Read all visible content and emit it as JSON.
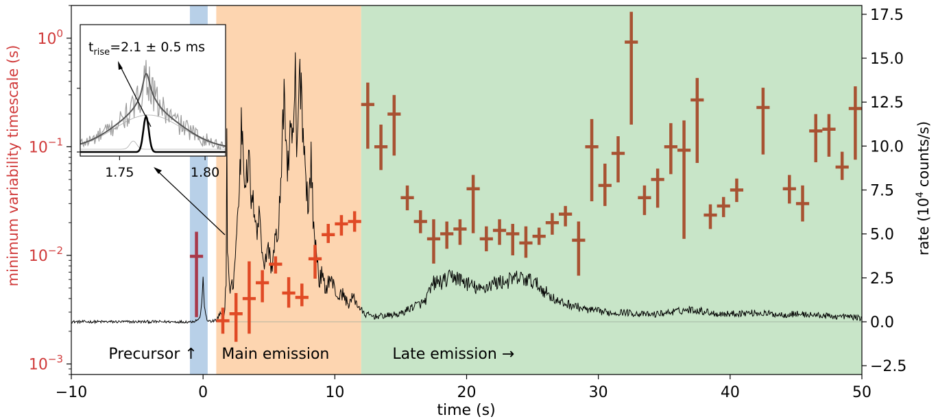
{
  "chart_data": {
    "type": "scatter",
    "xlabel": "time (s)",
    "ylabel_left": "minimum variability timescale (s)",
    "ylabel_right_prefix": "rate (10",
    "ylabel_right_sup": "4",
    "ylabel_right_suffix": " counts/s)",
    "x_ticks": [
      -10,
      0,
      10,
      20,
      30,
      40,
      50
    ],
    "x_tick_labels": [
      "−10",
      "0",
      "10",
      "20",
      "30",
      "40",
      "50"
    ],
    "xlim": [
      -10,
      50
    ],
    "left_ylim": [
      0.0008,
      2.0
    ],
    "left_scale": "log",
    "left_ticks": [
      {
        "value": 0.001,
        "base": "10",
        "exp": "−3"
      },
      {
        "value": 0.01,
        "base": "10",
        "exp": "−2"
      },
      {
        "value": 0.1,
        "base": "10",
        "exp": "−1"
      },
      {
        "value": 1,
        "base": "10",
        "exp": "0"
      }
    ],
    "right_ylim": [
      -3.0,
      18.0
    ],
    "right_ticks": [
      -2.5,
      0.0,
      2.5,
      5.0,
      7.5,
      10.0,
      12.5,
      15.0,
      17.5
    ],
    "right_tick_labels": [
      "−2.5",
      "0.0",
      "2.5",
      "5.0",
      "7.5",
      "10.0",
      "12.5",
      "15.0",
      "17.5"
    ],
    "regions": [
      {
        "label": "Precursor ↑",
        "x0": -1.0,
        "x1": 0.35,
        "color": "#b8d0e8"
      },
      {
        "label": "Main emission",
        "x0": 1.0,
        "x1": 12.0,
        "color": "#fdd5b0"
      },
      {
        "label": "Late emission →",
        "x0": 12.0,
        "x1": 50.0,
        "color": "#c8e5c8"
      }
    ],
    "mvt_points": [
      {
        "x": -0.5,
        "y": 0.0098,
        "lo": 0.0027,
        "hi": 0.0165,
        "xerr": 0.5,
        "color": "#a8394a"
      },
      {
        "x": 1.5,
        "y": 0.0025,
        "lo": 0.0019,
        "hi": 0.0033,
        "xerr": 0.5,
        "color": "#e04a25"
      },
      {
        "x": 2.5,
        "y": 0.0029,
        "lo": 0.0016,
        "hi": 0.0045,
        "xerr": 0.5,
        "color": "#e04a25"
      },
      {
        "x": 3.5,
        "y": 0.004,
        "lo": 0.0019,
        "hi": 0.0088,
        "xerr": 0.5,
        "color": "#e04a25"
      },
      {
        "x": 4.5,
        "y": 0.0056,
        "lo": 0.0037,
        "hi": 0.0073,
        "xerr": 0.5,
        "color": "#e04a25"
      },
      {
        "x": 5.5,
        "y": 0.0083,
        "lo": 0.0068,
        "hi": 0.0098,
        "xerr": 0.5,
        "color": "#e04a25"
      },
      {
        "x": 6.5,
        "y": 0.0045,
        "lo": 0.0033,
        "hi": 0.0063,
        "xerr": 0.5,
        "color": "#e04a25"
      },
      {
        "x": 7.5,
        "y": 0.0041,
        "lo": 0.0034,
        "hi": 0.0055,
        "xerr": 0.5,
        "color": "#e04a25"
      },
      {
        "x": 8.5,
        "y": 0.0093,
        "lo": 0.0061,
        "hi": 0.0125,
        "xerr": 0.5,
        "color": "#e04a25"
      },
      {
        "x": 9.5,
        "y": 0.0155,
        "lo": 0.013,
        "hi": 0.0195,
        "xerr": 0.5,
        "color": "#e04a25"
      },
      {
        "x": 10.5,
        "y": 0.0195,
        "lo": 0.0152,
        "hi": 0.0235,
        "xerr": 0.5,
        "color": "#e04a25"
      },
      {
        "x": 11.5,
        "y": 0.0205,
        "lo": 0.0165,
        "hi": 0.0255,
        "xerr": 0.5,
        "color": "#e04a25"
      },
      {
        "x": 12.5,
        "y": 0.245,
        "lo": 0.096,
        "hi": 0.39,
        "xerr": 0.5,
        "color": "#a85232"
      },
      {
        "x": 13.5,
        "y": 0.1,
        "lo": 0.061,
        "hi": 0.16,
        "xerr": 0.5,
        "color": "#a85232"
      },
      {
        "x": 14.5,
        "y": 0.2,
        "lo": 0.083,
        "hi": 0.3,
        "xerr": 0.5,
        "color": "#a85232"
      },
      {
        "x": 15.5,
        "y": 0.034,
        "lo": 0.026,
        "hi": 0.044,
        "xerr": 0.5,
        "color": "#a85232"
      },
      {
        "x": 16.5,
        "y": 0.0205,
        "lo": 0.016,
        "hi": 0.026,
        "xerr": 0.5,
        "color": "#a85232"
      },
      {
        "x": 17.5,
        "y": 0.0142,
        "lo": 0.0084,
        "hi": 0.0215,
        "xerr": 0.5,
        "color": "#a85232"
      },
      {
        "x": 18.5,
        "y": 0.0158,
        "lo": 0.0115,
        "hi": 0.0205,
        "xerr": 0.5,
        "color": "#a85232"
      },
      {
        "x": 19.5,
        "y": 0.0175,
        "lo": 0.0125,
        "hi": 0.0215,
        "xerr": 0.5,
        "color": "#a85232"
      },
      {
        "x": 20.5,
        "y": 0.041,
        "lo": 0.016,
        "hi": 0.055,
        "xerr": 0.5,
        "color": "#a85232"
      },
      {
        "x": 21.5,
        "y": 0.0142,
        "lo": 0.0109,
        "hi": 0.0185,
        "xerr": 0.5,
        "color": "#a85232"
      },
      {
        "x": 22.5,
        "y": 0.017,
        "lo": 0.0125,
        "hi": 0.0215,
        "xerr": 0.5,
        "color": "#a85232"
      },
      {
        "x": 23.5,
        "y": 0.0158,
        "lo": 0.01,
        "hi": 0.0195,
        "xerr": 0.5,
        "color": "#a85232"
      },
      {
        "x": 24.5,
        "y": 0.013,
        "lo": 0.0095,
        "hi": 0.0185,
        "xerr": 0.5,
        "color": "#a85232"
      },
      {
        "x": 25.5,
        "y": 0.015,
        "lo": 0.0125,
        "hi": 0.018,
        "xerr": 0.5,
        "color": "#a85232"
      },
      {
        "x": 26.5,
        "y": 0.02,
        "lo": 0.0155,
        "hi": 0.0245,
        "xerr": 0.5,
        "color": "#a85232"
      },
      {
        "x": 27.5,
        "y": 0.024,
        "lo": 0.0185,
        "hi": 0.0285,
        "xerr": 0.5,
        "color": "#a85232"
      },
      {
        "x": 28.5,
        "y": 0.0138,
        "lo": 0.0065,
        "hi": 0.0205,
        "xerr": 0.5,
        "color": "#a85232"
      },
      {
        "x": 29.5,
        "y": 0.1,
        "lo": 0.0315,
        "hi": 0.18,
        "xerr": 0.5,
        "color": "#a85232"
      },
      {
        "x": 30.5,
        "y": 0.044,
        "lo": 0.0285,
        "hi": 0.07,
        "xerr": 0.5,
        "color": "#a85232"
      },
      {
        "x": 31.5,
        "y": 0.087,
        "lo": 0.047,
        "hi": 0.125,
        "xerr": 0.5,
        "color": "#a85232"
      },
      {
        "x": 32.5,
        "y": 0.92,
        "lo": 0.16,
        "hi": 1.75,
        "xerr": 0.5,
        "color": "#a85232"
      },
      {
        "x": 33.5,
        "y": 0.034,
        "lo": 0.0235,
        "hi": 0.044,
        "xerr": 0.5,
        "color": "#a85232"
      },
      {
        "x": 34.5,
        "y": 0.05,
        "lo": 0.0275,
        "hi": 0.063,
        "xerr": 0.5,
        "color": "#a85232"
      },
      {
        "x": 35.5,
        "y": 0.1,
        "lo": 0.056,
        "hi": 0.165,
        "xerr": 0.5,
        "color": "#a85232"
      },
      {
        "x": 36.5,
        "y": 0.093,
        "lo": 0.0142,
        "hi": 0.175,
        "xerr": 0.5,
        "color": "#a85232"
      },
      {
        "x": 37.5,
        "y": 0.27,
        "lo": 0.071,
        "hi": 0.43,
        "xerr": 0.5,
        "color": "#a85232"
      },
      {
        "x": 38.5,
        "y": 0.0235,
        "lo": 0.0175,
        "hi": 0.0295,
        "xerr": 0.5,
        "color": "#a85232"
      },
      {
        "x": 39.5,
        "y": 0.0285,
        "lo": 0.0225,
        "hi": 0.0345,
        "xerr": 0.5,
        "color": "#a85232"
      },
      {
        "x": 40.5,
        "y": 0.04,
        "lo": 0.031,
        "hi": 0.051,
        "xerr": 0.5,
        "color": "#a85232"
      },
      {
        "x": 42.5,
        "y": 0.23,
        "lo": 0.085,
        "hi": 0.35,
        "xerr": 0.5,
        "color": "#a85232"
      },
      {
        "x": 44.5,
        "y": 0.041,
        "lo": 0.03,
        "hi": 0.055,
        "xerr": 0.5,
        "color": "#a85232"
      },
      {
        "x": 45.5,
        "y": 0.03,
        "lo": 0.0205,
        "hi": 0.044,
        "xerr": 0.5,
        "color": "#a85232"
      },
      {
        "x": 46.5,
        "y": 0.14,
        "lo": 0.072,
        "hi": 0.2,
        "xerr": 0.5,
        "color": "#a85232"
      },
      {
        "x": 47.5,
        "y": 0.145,
        "lo": 0.081,
        "hi": 0.2,
        "xerr": 0.5,
        "color": "#a85232"
      },
      {
        "x": 48.5,
        "y": 0.065,
        "lo": 0.0495,
        "hi": 0.09,
        "xerr": 0.5,
        "color": "#a85232"
      },
      {
        "x": 49.5,
        "y": 0.225,
        "lo": 0.076,
        "hi": 0.36,
        "xerr": 0.5,
        "color": "#a85232"
      }
    ],
    "lightcurve_keypoints": [
      [
        -10,
        0.0
      ],
      [
        -1.0,
        0.0
      ],
      [
        -0.6,
        0.05
      ],
      [
        -0.25,
        0.2
      ],
      [
        -0.1,
        1.0
      ],
      [
        0.0,
        2.6
      ],
      [
        0.1,
        0.8
      ],
      [
        0.3,
        0.1
      ],
      [
        0.6,
        0.0
      ],
      [
        1.0,
        0.1
      ],
      [
        1.3,
        0.4
      ],
      [
        1.6,
        0.25
      ],
      [
        1.75,
        2.5
      ],
      [
        1.8,
        10.0
      ],
      [
        1.85,
        4.5
      ],
      [
        2.0,
        1.8
      ],
      [
        2.3,
        2.2
      ],
      [
        2.55,
        5.0
      ],
      [
        2.7,
        7.0
      ],
      [
        2.85,
        9.2
      ],
      [
        2.9,
        11.5
      ],
      [
        3.0,
        10.8
      ],
      [
        3.1,
        8.8
      ],
      [
        3.3,
        8.2
      ],
      [
        3.5,
        9.0
      ],
      [
        3.7,
        6.5
      ],
      [
        3.9,
        6.8
      ],
      [
        4.1,
        5.0
      ],
      [
        4.3,
        6.3
      ],
      [
        4.5,
        4.0
      ],
      [
        4.7,
        3.1
      ],
      [
        4.9,
        4.5
      ],
      [
        5.2,
        3.0
      ],
      [
        5.5,
        5.0
      ],
      [
        5.7,
        4.3
      ],
      [
        6.0,
        10.4
      ],
      [
        6.2,
        12.8
      ],
      [
        6.4,
        8.5
      ],
      [
        6.6,
        10.2
      ],
      [
        6.8,
        10.0
      ],
      [
        7.0,
        14.0
      ],
      [
        7.1,
        9.0
      ],
      [
        7.3,
        13.5
      ],
      [
        7.45,
        14.0
      ],
      [
        7.6,
        10.5
      ],
      [
        7.8,
        8.6
      ],
      [
        8.0,
        6.2
      ],
      [
        8.2,
        9.5
      ],
      [
        8.4,
        5.0
      ],
      [
        8.6,
        4.2
      ],
      [
        8.8,
        2.3
      ],
      [
        9.0,
        2.7
      ],
      [
        9.3,
        1.8
      ],
      [
        9.6,
        2.5
      ],
      [
        9.9,
        2.1
      ],
      [
        10.2,
        1.4
      ],
      [
        10.6,
        1.6
      ],
      [
        11.0,
        1.0
      ],
      [
        11.4,
        1.4
      ],
      [
        11.8,
        0.9
      ],
      [
        12.2,
        0.45
      ],
      [
        13,
        0.3
      ],
      [
        14,
        0.35
      ],
      [
        15,
        0.45
      ],
      [
        16,
        0.9
      ],
      [
        16.8,
        1.1
      ],
      [
        17.5,
        2.2
      ],
      [
        18.3,
        2.3
      ],
      [
        19,
        2.6
      ],
      [
        20,
        2.2
      ],
      [
        21,
        1.8
      ],
      [
        22,
        2.2
      ],
      [
        23,
        2.3
      ],
      [
        24,
        2.5
      ],
      [
        25,
        2.3
      ],
      [
        26,
        1.7
      ],
      [
        27,
        1.1
      ],
      [
        28,
        0.95
      ],
      [
        29,
        0.7
      ],
      [
        30,
        0.6
      ],
      [
        31,
        0.5
      ],
      [
        32,
        0.55
      ],
      [
        33,
        0.45
      ],
      [
        34,
        0.4
      ],
      [
        35,
        0.5
      ],
      [
        36,
        0.6
      ],
      [
        37,
        0.7
      ],
      [
        38,
        0.6
      ],
      [
        39,
        0.45
      ],
      [
        40,
        0.45
      ],
      [
        41,
        0.5
      ],
      [
        42,
        0.5
      ],
      [
        43,
        0.45
      ],
      [
        44,
        0.4
      ],
      [
        45,
        0.45
      ],
      [
        46,
        0.4
      ],
      [
        47,
        0.35
      ],
      [
        48,
        0.3
      ],
      [
        49,
        0.3
      ],
      [
        50,
        0.2
      ]
    ],
    "inset": {
      "label_main": "t",
      "label_sub": "rise",
      "label_value": "=2.1 ± 0.5 ms",
      "x_ticks": [
        1.75,
        1.8
      ],
      "x_tick_labels": [
        "1.75",
        "1.80"
      ],
      "xlim": [
        1.727,
        1.812
      ]
    }
  }
}
